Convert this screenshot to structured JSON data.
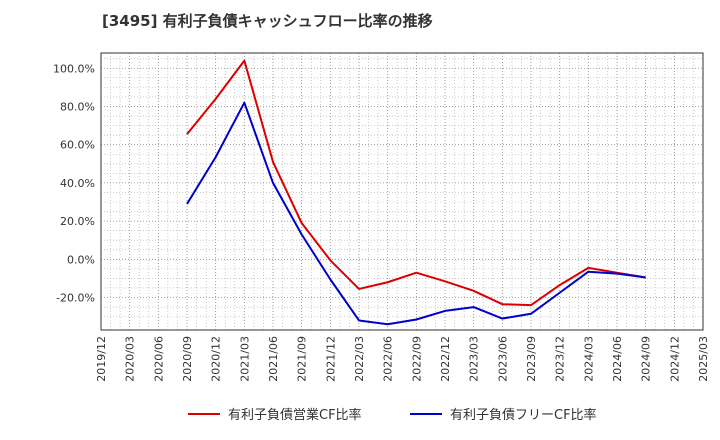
{
  "chart_data": {
    "type": "line",
    "title": "[3495]  有利子負債キャッシュフロー比率の推移",
    "xlabel": "",
    "ylabel": "",
    "x_ticks": [
      "2019/12",
      "2020/03",
      "2020/06",
      "2020/09",
      "2020/12",
      "2021/03",
      "2021/06",
      "2021/09",
      "2021/12",
      "2022/03",
      "2022/06",
      "2022/09",
      "2022/12",
      "2023/03",
      "2023/06",
      "2023/09",
      "2023/12",
      "2024/03",
      "2024/06",
      "2024/09",
      "2024/12",
      "2025/03"
    ],
    "y_ticks": [
      "100.0%",
      "80.0%",
      "60.0%",
      "40.0%",
      "20.0%",
      "0.0%",
      "-20.0%"
    ],
    "y_tick_values": [
      100,
      80,
      60,
      40,
      20,
      0,
      -20
    ],
    "ylim": [
      -37,
      108
    ],
    "grid": true,
    "legend_position": "bottom",
    "series": [
      {
        "name": "有利子負債営業CF比率",
        "color": "#dd0000",
        "x": [
          "2020/09",
          "2020/12",
          "2021/03",
          "2021/06",
          "2021/09",
          "2021/12",
          "2022/03",
          "2022/06",
          "2022/09",
          "2022/12",
          "2023/03",
          "2023/06",
          "2023/09",
          "2023/12",
          "2024/03",
          "2024/06",
          "2024/09"
        ],
        "values": [
          65.5,
          84.0,
          104.0,
          51.0,
          19.0,
          -0.5,
          -15.5,
          -12.0,
          -7.0,
          -11.5,
          -16.5,
          -23.5,
          -24.0,
          -13.5,
          -4.5,
          -7.0,
          -9.5
        ]
      },
      {
        "name": "有利子負債フリーCF比率",
        "color": "#0000cc",
        "x": [
          "2020/09",
          "2020/12",
          "2021/03",
          "2021/06",
          "2021/09",
          "2021/12",
          "2022/03",
          "2022/06",
          "2022/09",
          "2022/12",
          "2023/03",
          "2023/06",
          "2023/09",
          "2023/12",
          "2024/03",
          "2024/06",
          "2024/09"
        ],
        "values": [
          29.0,
          53.5,
          82.0,
          40.0,
          13.0,
          -10.5,
          -32.0,
          -34.0,
          -31.5,
          -27.0,
          -25.0,
          -31.0,
          -28.5,
          -17.5,
          -6.5,
          -7.5,
          -9.5
        ]
      }
    ]
  }
}
